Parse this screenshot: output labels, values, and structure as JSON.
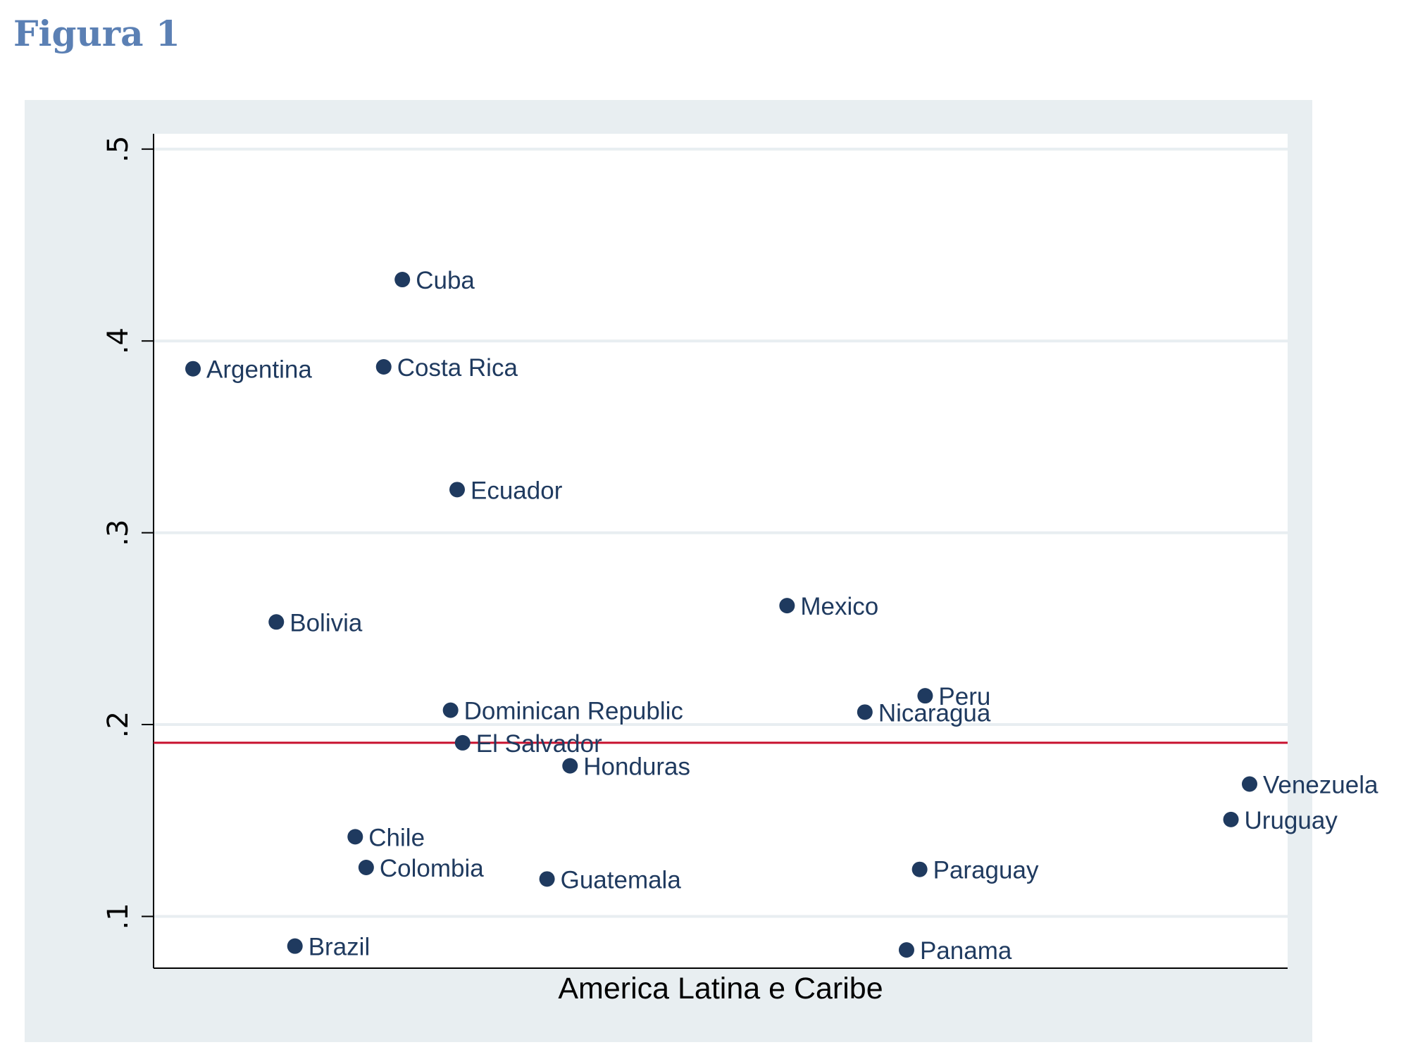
{
  "figure": {
    "title": "Figura 1"
  },
  "chart_data": {
    "type": "scatter",
    "title": "",
    "xlabel": "America Latina e Caribe",
    "ylabel": "",
    "ylim": [
      0.073,
      0.508
    ],
    "xlim": [
      0,
      1
    ],
    "yticks": [
      {
        "value": 0.1,
        "label": ".1"
      },
      {
        "value": 0.2,
        "label": ".2"
      },
      {
        "value": 0.3,
        "label": ".3"
      },
      {
        "value": 0.4,
        "label": ".4"
      },
      {
        "value": 0.5,
        "label": ".5"
      }
    ],
    "grid": true,
    "reference_line": {
      "y": 0.1905,
      "color": "#c8102e"
    },
    "point_color": "#1f3a5f",
    "points": [
      {
        "label": "Argentina",
        "x": 0.018,
        "y": 0.3855
      },
      {
        "label": "Bolivia",
        "x": 0.094,
        "y": 0.2535
      },
      {
        "label": "Brazil",
        "x": 0.111,
        "y": 0.0845
      },
      {
        "label": "Chile",
        "x": 0.166,
        "y": 0.1415
      },
      {
        "label": "Colombia",
        "x": 0.176,
        "y": 0.1255
      },
      {
        "label": "Costa Rica",
        "x": 0.192,
        "y": 0.3865
      },
      {
        "label": "Cuba",
        "x": 0.209,
        "y": 0.432
      },
      {
        "label": "Dominican Republic",
        "x": 0.253,
        "y": 0.2075
      },
      {
        "label": "Ecuador",
        "x": 0.259,
        "y": 0.3225
      },
      {
        "label": "El Salvador",
        "x": 0.264,
        "y": 0.1905
      },
      {
        "label": "Guatemala",
        "x": 0.341,
        "y": 0.1195
      },
      {
        "label": "Honduras",
        "x": 0.362,
        "y": 0.1785
      },
      {
        "label": "Mexico",
        "x": 0.56,
        "y": 0.262
      },
      {
        "label": "Nicaragua",
        "x": 0.631,
        "y": 0.2065
      },
      {
        "label": "Panama",
        "x": 0.669,
        "y": 0.0825
      },
      {
        "label": "Paraguay",
        "x": 0.681,
        "y": 0.1245
      },
      {
        "label": "Peru",
        "x": 0.686,
        "y": 0.215
      },
      {
        "label": "Uruguay",
        "x": 0.965,
        "y": 0.1505
      },
      {
        "label": "Venezuela",
        "x": 0.982,
        "y": 0.169
      }
    ]
  }
}
